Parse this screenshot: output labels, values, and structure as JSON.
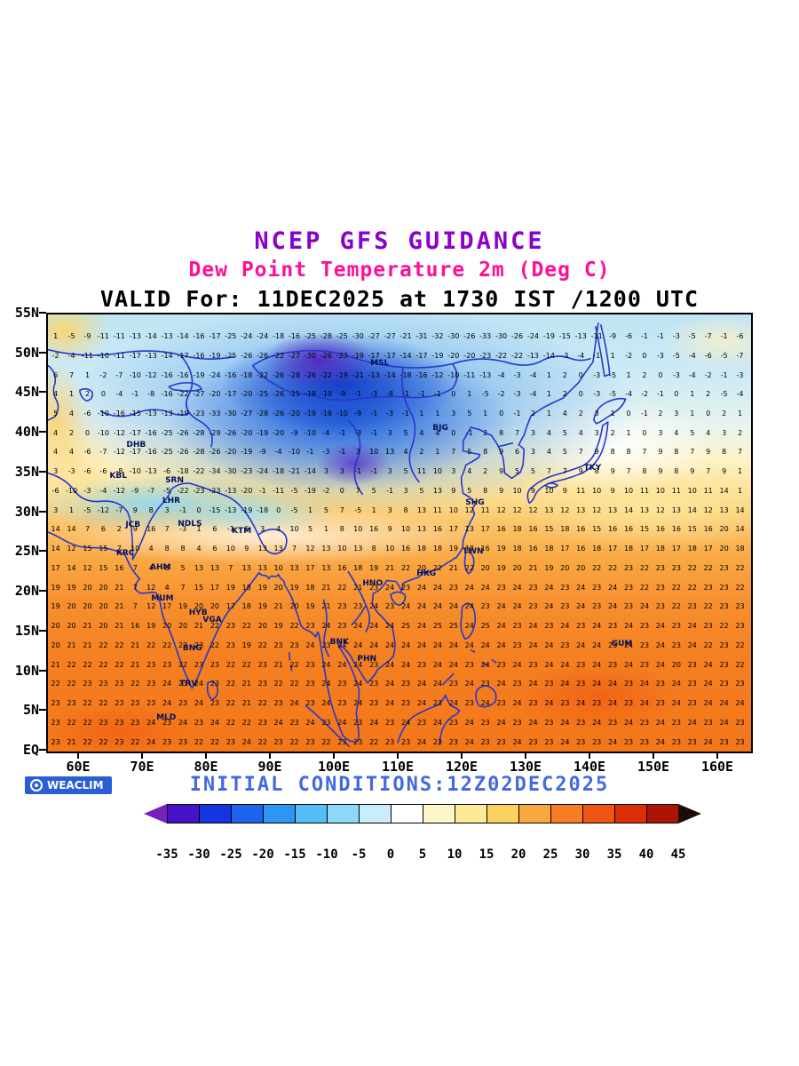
{
  "header": {
    "title1": "NCEP GFS GUIDANCE",
    "title2": "Dew Point Temperature 2m (Deg C)",
    "title3": "VALID For: 11DEC2025 at 1730 IST /1200 UTC"
  },
  "footer": {
    "initial_conditions": "INITIAL CONDITIONS:12Z02DEC2025",
    "brand": "WEACLIM"
  },
  "colors": {
    "title1": "#8B00CC",
    "title2": "#FF1096",
    "title3": "#000000",
    "initial_conditions": "#4169E1",
    "coastline": "#2436CF",
    "brand_bg": "#2B5DD7"
  },
  "chart_data": {
    "type": "heatmap",
    "title": "NCEP GFS GUIDANCE - Dew Point Temperature 2m (Deg C)",
    "valid": "11DEC2025 at 1730 IST /1200 UTC",
    "initialized": "12Z02DEC2025",
    "units": "Deg C",
    "lon_range": [
      55,
      165
    ],
    "lat_range": [
      0,
      55
    ],
    "x_axis": [
      {
        "label": "60E",
        "lon": 60
      },
      {
        "label": "70E",
        "lon": 70
      },
      {
        "label": "80E",
        "lon": 80
      },
      {
        "label": "90E",
        "lon": 90
      },
      {
        "label": "100E",
        "lon": 100
      },
      {
        "label": "110E",
        "lon": 110
      },
      {
        "label": "120E",
        "lon": 120
      },
      {
        "label": "130E",
        "lon": 130
      },
      {
        "label": "140E",
        "lon": 140
      },
      {
        "label": "150E",
        "lon": 150
      },
      {
        "label": "160E",
        "lon": 160
      }
    ],
    "y_axis": [
      {
        "label": "55N",
        "lat": 55
      },
      {
        "label": "50N",
        "lat": 50
      },
      {
        "label": "45N",
        "lat": 45
      },
      {
        "label": "40N",
        "lat": 40
      },
      {
        "label": "35N",
        "lat": 35
      },
      {
        "label": "30N",
        "lat": 30
      },
      {
        "label": "25N",
        "lat": 25
      },
      {
        "label": "20N",
        "lat": 20
      },
      {
        "label": "15N",
        "lat": 15
      },
      {
        "label": "10N",
        "lat": 10
      },
      {
        "label": "5N",
        "lat": 5
      },
      {
        "label": "EQ",
        "lat": 0
      }
    ],
    "colorbar": {
      "levels": [
        -35,
        -30,
        -25,
        -20,
        -15,
        -10,
        -5,
        0,
        5,
        10,
        15,
        20,
        25,
        30,
        35,
        40,
        45
      ],
      "colors": [
        "#4612C8",
        "#1436E0",
        "#1E64EC",
        "#2E96F4",
        "#55BDF7",
        "#8ED9FA",
        "#C8EEFC",
        "#FFFFFF",
        "#FDF6C8",
        "#FCEA96",
        "#FBD25F",
        "#F9A840",
        "#F67D22",
        "#EE5513",
        "#DD2E0A",
        "#AD1403"
      ],
      "arrow_left": "#7A1FBE",
      "arrow_right": "#1C0B06"
    },
    "stations": [
      {
        "label": "DHB",
        "lon": 68.8,
        "lat": 38.6
      },
      {
        "label": "MSL",
        "lon": 106.9,
        "lat": 48.8
      },
      {
        "label": "BJG",
        "lon": 116.4,
        "lat": 40.7
      },
      {
        "label": "KBL",
        "lon": 66.0,
        "lat": 34.6
      },
      {
        "label": "SRN",
        "lon": 74.8,
        "lat": 34.1
      },
      {
        "label": "TKY",
        "lon": 140.2,
        "lat": 35.7
      },
      {
        "label": "LHR",
        "lon": 74.3,
        "lat": 31.5
      },
      {
        "label": "SHG",
        "lon": 121.8,
        "lat": 31.3
      },
      {
        "label": "JCB",
        "lon": 68.3,
        "lat": 28.5
      },
      {
        "label": "NDLS",
        "lon": 77.2,
        "lat": 28.6
      },
      {
        "label": "KTM",
        "lon": 85.3,
        "lat": 27.7
      },
      {
        "label": "TWN",
        "lon": 121.5,
        "lat": 25.2
      },
      {
        "label": "KRC",
        "lon": 67.1,
        "lat": 24.9
      },
      {
        "label": "AHM",
        "lon": 72.6,
        "lat": 23.1
      },
      {
        "label": "HKG",
        "lon": 114.2,
        "lat": 22.4
      },
      {
        "label": "HNO",
        "lon": 105.8,
        "lat": 21.1
      },
      {
        "label": "MUM",
        "lon": 72.9,
        "lat": 19.2
      },
      {
        "label": "HYB",
        "lon": 78.5,
        "lat": 17.4
      },
      {
        "label": "VGA",
        "lon": 80.7,
        "lat": 16.5
      },
      {
        "label": "BNK",
        "lon": 100.6,
        "lat": 13.8
      },
      {
        "label": "GUM",
        "lon": 144.8,
        "lat": 13.5
      },
      {
        "label": "BNG",
        "lon": 77.6,
        "lat": 13.0
      },
      {
        "label": "PHN",
        "lon": 104.9,
        "lat": 11.6
      },
      {
        "label": "TRV",
        "lon": 77.0,
        "lat": 8.5
      },
      {
        "label": "MLD",
        "lon": 73.5,
        "lat": 4.2
      }
    ],
    "grid_values": {
      "lon_start": 56.2,
      "lon_step": 2.49,
      "lat_start": 52.2,
      "lat_step": 2.43,
      "rows": [
        "1 -5 -9 -11 -11 -13 -14 -13 -14 -16 -17 -25 -24 -24 -18 -16 -25 -28 -25 -30 -27 -27 -21 -31 -32 -30 -26 -33 -30 -26 -24 -19 -15 -13 -11 -9 -6 -1 -1 -3 -5 -7 -1 -6",
        "-2 -4 -11 -10 -11 -17 -13 -14 -17 -16 -19 -25 -26 -26 -22 -27 -30 -26 -23 -19 -17 -17 -14 -17 -19 -20 -20 -23 -22 -22 -13 -14 -3 -4 -1 1 -2 0 -3 -5 -4 -6 -5 -7",
        "6 7 1 -2 -7 -10 -12 -16 -16 -19 -24 -16 -18 -22 -26 -28 -26 -22 -19 -21 -13 -14 -18 -16 -12 -10 -11 -13 -4 -3 -4 1 2 0 -3 -5 1 2 0 -3 -4 -2 -1 -3",
        "4 1 2 0 -4 -1 -8 -16 -22 -27 -20 -17 -20 -25 -26 -25 -18 -10 -9 -1 -3 -8 -1 -1 -1 0 1 -5 -2 -3 -4 1 2 0 -3 -5 -4 -2 -1 0 1 2 -5 -4",
        "5 4 -6 -10 -16 -15 -13 -13 -19 -23 -33 -30 -27 -28 -26 -20 -19 -18 -10 -9 -1 -3 -1 1 1 3 5 1 0 -1 2 1 4 2 3 1 0 -1 2 3 1 0 2 1",
        "4 2 0 -10 -12 -17 -16 -25 -26 -28 -29 -26 -20 -19 -20 -9 -10 -4 -1 -3 -1 3 5 4 4 0 -1 2 8 7 3 4 5 4 3 2 1 0 3 4 5 4 3 2",
        "4 4 -6 -7 -12 -17 -16 -25 -26 -28 -26 -20 -19 -9 -4 -10 -1 -3 -1 3 10 13 4 2 1 7 5 8 9 6 3 4 5 7 9 8 8 7 9 8 7 9 8 7",
        "3 -3 -6 -6 -8 -10 -13 -6 -18 -22 -34 -30 -23 -24 -18 -21 -14 3 3 -1 -1 3 5 11 10 3 4 2 9 5 5 7 7 9 8 9 7 8 9 8 9 7 9 1",
        "-6 -10 -3 -4 -12 -9 -7 -5 -22 -23 -23 -13 -20 -1 -11 -5 -19 -2 0 7 5 -1 3 5 13 9 5 8 9 10 9 10 9 11 10 9 10 11 10 11 10 11 14 1",
        "3 1 -5 -12 -7 9 8 3 -1 0 -15 -13 -19 -18 0 -5 1 5 7 -5 1 3 8 13 11 10 12 11 12 12 12 13 12 13 12 13 14 13 12 13 14 12 13 14",
        "14 14 7 6 2 9 16 7 -3 1 6 -1 6 3 4 10 5 1 8 10 16 9 10 13 16 17 13 17 16 18 16 15 18 16 15 16 16 15 16 16 15 16 20 14",
        "14 12 15 15 7 10 4 8 8 4 6 10 9 13 13 7 12 13 10 13 8 10 16 18 18 19 18 16 19 18 16 18 17 16 18 17 18 17 18 17 18 17 20 18",
        "17 14 12 15 16 7 4 6 5 13 13 7 13 13 10 13 17 13 16 18 19 21 22 20 22 21 22 20 19 20 21 19 20 20 22 22 23 22 23 23 22 22 23 22",
        "19 19 20 20 21 7 12 4 7 15 17 19 18 19 20 19 18 21 22 21 23 24 23 24 24 23 24 24 23 24 23 24 23 24 23 24 23 22 23 22 22 23 23 22",
        "19 20 20 20 21 7 12 17 19 20 20 17 18 19 21 20 19 21 23 23 24 23 24 24 24 24 24 23 24 24 23 24 23 24 23 24 23 24 23 22 23 22 23 23",
        "20 20 21 20 21 16 19 20 20 21 22 23 22 20 19 22 23 24 23 24 24 24 25 24 25 25 24 25 24 23 24 23 24 23 24 23 24 23 24 23 24 23 22 23",
        "20 21 21 22 22 21 22 22 22 23 22 23 19 22 23 23 24 23 24 24 24 24 24 24 24 24 24 24 24 23 24 24 23 24 24 23 24 23 24 23 24 22 23 22",
        "21 22 22 22 22 21 23 23 22 23 23 22 22 23 21 22 23 24 24 24 23 24 24 23 24 24 23 24 23 24 23 24 24 23 24 23 24 23 24 20 23 24 23 22",
        "22 22 23 23 23 22 23 24 23 24 23 22 21 23 22 22 23 24 23 24 23 24 23 24 24 23 24 23 24 23 24 23 24 23 24 24 23 24 23 24 23 24 23 23",
        "23 23 22 22 23 23 23 24 23 24 23 22 21 22 23 24 23 24 23 24 23 24 23 24 23 24 23 24 23 24 23 24 23 24 23 24 23 24 23 24 23 24 24 24",
        "23 22 22 23 23 23 24 23 24 23 24 22 22 23 24 23 24 23 24 23 24 23 24 23 24 23 24 23 24 23 24 23 24 23 24 23 24 23 24 23 24 23 24 23",
        "23 21 22 22 23 22 24 23 23 22 22 23 24 22 23 22 23 22 23 23 22 23 23 24 23 23 24 23 23 24 23 23 24 23 23 24 23 23 24 23 23 24 23 23"
      ]
    }
  }
}
